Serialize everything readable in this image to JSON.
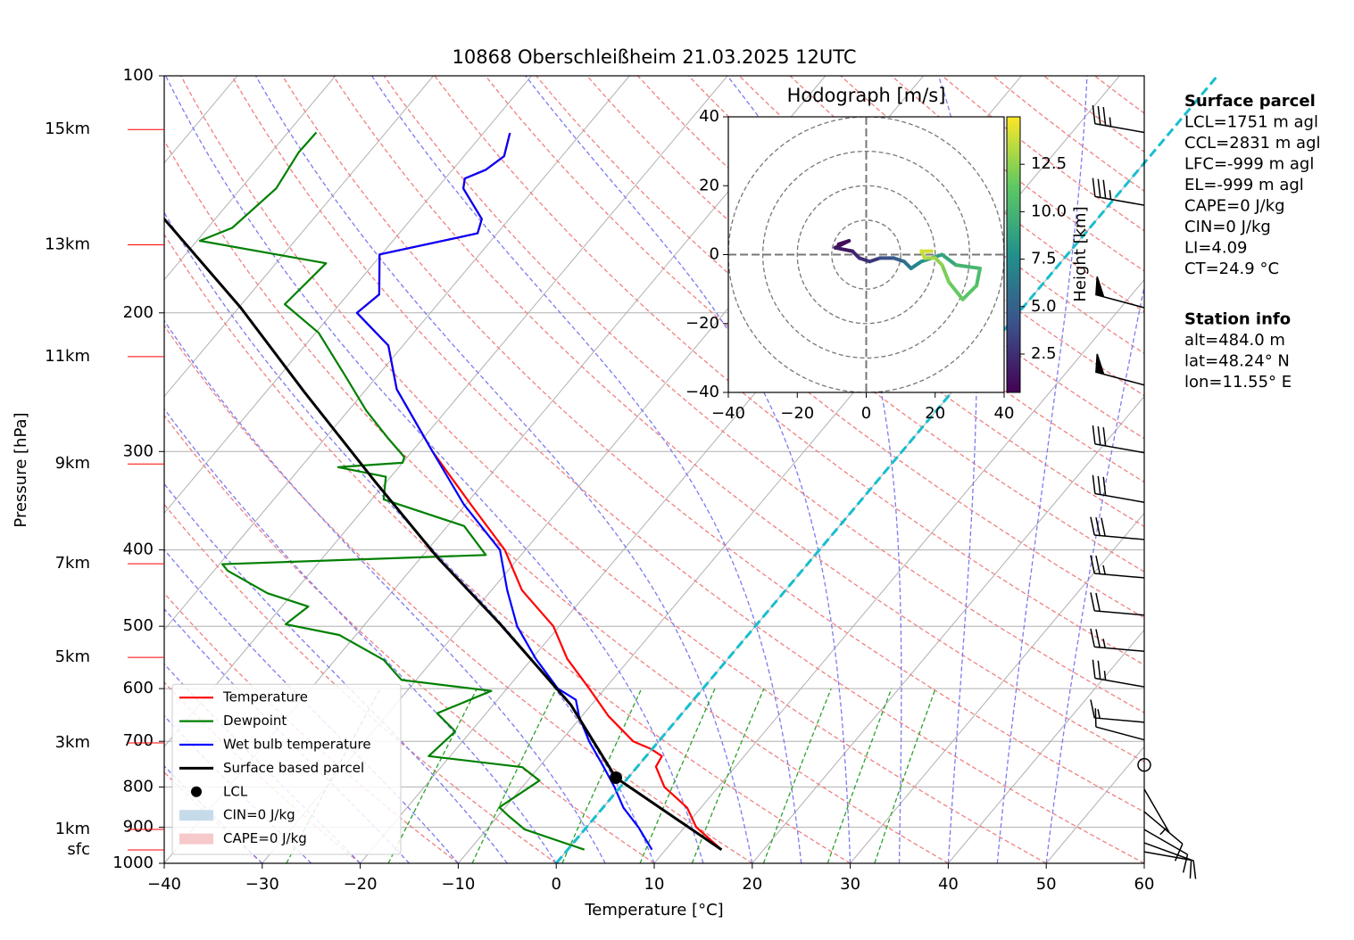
{
  "chart_data": [
    {
      "type": "skewt",
      "title": "10868 Oberschleißheim 21.03.2025 12UTC",
      "xlabel": "Temperature [°C]",
      "ylabel": "Pressure [hPa]",
      "xlim": [
        -40,
        60
      ],
      "xticks": [
        {
          "value": -40,
          "label": "−40"
        },
        {
          "value": -30,
          "label": "−30"
        },
        {
          "value": -20,
          "label": "−20"
        },
        {
          "value": -10,
          "label": "−10"
        },
        0,
        10,
        20,
        30,
        40,
        50,
        60
      ],
      "ylim": [
        1000,
        100
      ],
      "yticks": [
        100,
        200,
        300,
        400,
        500,
        600,
        700,
        800,
        900,
        1000
      ],
      "log_y": true,
      "grid": true,
      "legend": "lower left",
      "series": [
        {
          "name": "Temperature",
          "color": "red",
          "linewidth": 2.2,
          "pressure": [
            961,
            900,
            850,
            800,
            754,
            731,
            716,
            700,
            650,
            600,
            550,
            500,
            450,
            400,
            350,
            300,
            250,
            220,
            200,
            189.5,
            168.6,
            158.5,
            152,
            139,
            135,
            131.6,
            126.5,
            118.2
          ],
          "values": [
            15.7,
            11.2,
            8.6,
            4.5,
            1.9,
            1.6,
            -0.1,
            -2.6,
            -7.3,
            -11.6,
            -16.4,
            -20.6,
            -26.9,
            -32.1,
            -39.5,
            -47.9,
            -56.9,
            -61.5,
            -67.5,
            -66.8,
            -70.2,
            -62,
            -62.8,
            -67.3,
            -68,
            -66.6,
            -65.9,
            -67.3
          ]
        },
        {
          "name": "Dewpoint",
          "color": "green",
          "linewidth": 2.2,
          "pressure": [
            961,
            906,
            871,
            849,
            785,
            755,
            731,
            680,
            645,
            604,
            585,
            552,
            513,
            497,
            472,
            454,
            425,
            417,
            406,
            373,
            345,
            323,
            314,
            310,
            305,
            288,
            266,
            239,
            212,
            195,
            173,
            162,
            156,
            139,
            125,
            118
          ],
          "values": [
            1.7,
            -6.1,
            -8.9,
            -10.6,
            -8.8,
            -11.7,
            -22.2,
            -21.6,
            -25,
            -21.4,
            -31.5,
            -35,
            -41.7,
            -48.1,
            -47.3,
            -52.6,
            -58.6,
            -59.7,
            -33.6,
            -38.3,
            -48.8,
            -50.5,
            -56.2,
            -50,
            -50.3,
            -53.7,
            -58.2,
            -63.6,
            -69.7,
            -75.6,
            -74.9,
            -89.7,
            -87.5,
            -86.4,
            -87.2,
            -87.1
          ]
        },
        {
          "name": "Wet bulb temperature",
          "color": "blue",
          "linewidth": 2.2,
          "pressure": [
            961,
            900,
            850,
            800,
            750,
            700,
            650,
            620,
            600,
            550,
            500,
            450,
            400,
            350,
            300,
            250,
            220,
            200,
            189.5,
            168.6,
            158.5,
            152,
            139,
            135,
            131.6,
            126.5,
            118.2
          ],
          "values": [
            8.6,
            5.3,
            2.1,
            -0.6,
            -3.7,
            -7.1,
            -10.3,
            -12,
            -14.8,
            -19.6,
            -24.3,
            -28.4,
            -32.6,
            -40.2,
            -47.9,
            -56.9,
            -61.5,
            -67.5,
            -66.8,
            -70.2,
            -62,
            -62.8,
            -67.3,
            -68,
            -66.6,
            -65.9,
            -67.3
          ]
        },
        {
          "name": "Surface based parcel",
          "color": "black",
          "linewidth": 3,
          "pressure": [
            961,
            778.6,
            629,
            497,
            409,
            327.5,
            252,
            197,
            151.5
          ],
          "values": [
            15.7,
            -1.25,
            -12.1,
            -26.2,
            -38.3,
            -51.2,
            -66.1,
            -79.8,
            -95.4
          ]
        }
      ],
      "lcl": {
        "name": "LCL",
        "pressure": 778.6,
        "value": -1.25,
        "color": "black"
      },
      "legend_patches": [
        {
          "name": "CIN=0 J/kg",
          "color": "#c6dbea"
        },
        {
          "name": "CAPE=0 J/kg",
          "color": "#f6c9cb"
        }
      ],
      "height_labels": {
        "color": "red",
        "items": [
          {
            "label": "15km",
            "pressure": 117
          },
          {
            "label": "13km",
            "pressure": 163.9
          },
          {
            "label": "11km",
            "pressure": 227.3
          },
          {
            "label": "9km",
            "pressure": 311.1
          },
          {
            "label": "7km",
            "pressure": 416.5
          },
          {
            "label": "5km",
            "pressure": 547.6
          },
          {
            "label": "3km",
            "pressure": 703.2
          },
          {
            "label": "1km",
            "pressure": 905.7
          },
          {
            "label": "sfc",
            "pressure": 961.6
          }
        ]
      },
      "wind_barbs": {
        "pressure": [
          118,
          146,
          197,
          247,
          301,
          348,
          388,
          434,
          484,
          538,
          597,
          662,
          697,
          750,
          805,
          860,
          906,
          942,
          967
        ],
        "speed": [
          35,
          35,
          50,
          50,
          30,
          30,
          30,
          25,
          20,
          25,
          25,
          15,
          10,
          0,
          5,
          10,
          10,
          10,
          10
        ],
        "direction": [
          280,
          280,
          285,
          285,
          280,
          280,
          275,
          275,
          275,
          275,
          280,
          275,
          285,
          0,
          150,
          130,
          120,
          110,
          100
        ]
      }
    },
    {
      "type": "hodograph",
      "title": "Hodograph [m/s]",
      "xlim": [
        -40,
        40
      ],
      "ylim": [
        -40,
        40
      ],
      "xticks": [
        {
          "value": -40,
          "label": "−40"
        },
        {
          "value": -20,
          "label": "−20"
        },
        0,
        20,
        40
      ],
      "yticks": [
        {
          "value": -40,
          "label": "−40"
        },
        {
          "value": -20,
          "label": "−20"
        },
        0,
        20,
        40
      ],
      "u": [
        -8,
        -5,
        -9,
        -4,
        -2,
        1,
        4,
        8,
        11,
        13,
        16,
        19,
        22,
        26,
        33,
        32,
        28,
        24,
        22,
        20,
        17,
        16,
        19
      ],
      "v": [
        3,
        4,
        2,
        1,
        -1,
        -2,
        -1,
        -1,
        -2,
        -4,
        -2,
        -1,
        0,
        -3,
        -4,
        -9,
        -13,
        -8,
        -3,
        -1,
        -1,
        1,
        1
      ],
      "height": [
        0.5,
        1,
        1.5,
        2,
        2.5,
        3,
        4,
        5,
        6,
        7,
        8,
        8.5,
        9,
        10,
        10.5,
        11,
        11.5,
        12,
        12.5,
        13,
        13.5,
        14,
        14.5
      ],
      "colorbar": {
        "label": "Height [km]",
        "lim": [
          0.48,
          15
        ],
        "ticks": [
          2.5,
          {
            "value": 5,
            "label": "5.0"
          },
          7.5,
          {
            "value": 10,
            "label": "10.0"
          },
          12.5
        ]
      }
    }
  ],
  "info_panel": [
    {
      "title": "Surface parcel",
      "lines": [
        "LCL=1751 m agl",
        "CCL=2831 m agl",
        "LFC=-999 m agl",
        "EL=-999 m agl",
        "CAPE=0 J/kg",
        "CIN=0 J/kg",
        "LI=4.09",
        "CT=24.9 °C"
      ]
    },
    {
      "title": "Station info",
      "lines": [
        "alt=484.0 m",
        "lat=48.24° N",
        "lon=11.55° E"
      ]
    }
  ]
}
